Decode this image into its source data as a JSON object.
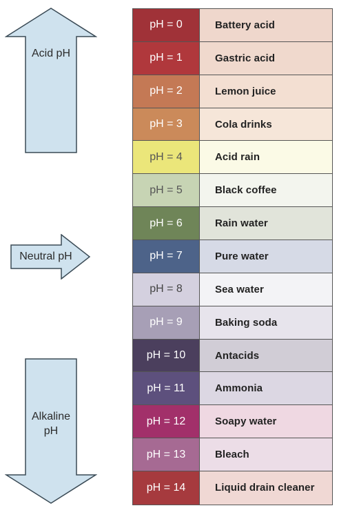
{
  "arrows": {
    "acid": {
      "label": "Acid pH",
      "direction": "up"
    },
    "neutral": {
      "label": "Neutral pH",
      "direction": "right"
    },
    "alkaline": {
      "label_line1": "Alkaline",
      "label_line2": "pH",
      "direction": "down"
    },
    "fill_color": "#cfe2ee",
    "stroke_color": "#3a4a55"
  },
  "rows": [
    {
      "ph": "pH = 0",
      "substance": "Battery acid",
      "ph_color": "#a03238",
      "desc_color": "#efd7cc",
      "ph_text_color": "#ffffff"
    },
    {
      "ph": "pH = 1",
      "substance": "Gastric acid",
      "ph_color": "#b0383c",
      "desc_color": "#f0d9cd",
      "ph_text_color": "#ffffff"
    },
    {
      "ph": "pH = 2",
      "substance": "Lemon juice",
      "ph_color": "#c47955",
      "desc_color": "#f3dfd2",
      "ph_text_color": "#ffffff"
    },
    {
      "ph": "pH = 3",
      "substance": "Cola drinks",
      "ph_color": "#cb8a5a",
      "desc_color": "#f6e6d9",
      "ph_text_color": "#ffffff"
    },
    {
      "ph": "pH = 4",
      "substance": "Acid rain",
      "ph_color": "#ebe67a",
      "desc_color": "#fbfae6",
      "ph_text_color": "#555555"
    },
    {
      "ph": "pH = 5",
      "substance": "Black coffee",
      "ph_color": "#c7d4b4",
      "desc_color": "#f3f5ee",
      "ph_text_color": "#555555"
    },
    {
      "ph": "pH = 6",
      "substance": "Rain water",
      "ph_color": "#6f8558",
      "desc_color": "#e1e4da",
      "ph_text_color": "#ffffff"
    },
    {
      "ph": "pH = 7",
      "substance": "Pure water",
      "ph_color": "#4d6389",
      "desc_color": "#d6dae6",
      "ph_text_color": "#ffffff"
    },
    {
      "ph": "pH = 8",
      "substance": "Sea water",
      "ph_color": "#d4d0df",
      "desc_color": "#f3f3f6",
      "ph_text_color": "#444444"
    },
    {
      "ph": "pH = 9",
      "substance": "Baking soda",
      "ph_color": "#a79fb6",
      "desc_color": "#e7e4ec",
      "ph_text_color": "#ffffff"
    },
    {
      "ph": "pH = 10",
      "substance": "Antacids",
      "ph_color": "#4b3f5d",
      "desc_color": "#d1cdd6",
      "ph_text_color": "#ffffff"
    },
    {
      "ph": "pH = 11",
      "substance": "Ammonia",
      "ph_color": "#5d507d",
      "desc_color": "#dcd7e3",
      "ph_text_color": "#ffffff"
    },
    {
      "ph": "pH = 12",
      "substance": "Soapy water",
      "ph_color": "#a2306a",
      "desc_color": "#efd8e2",
      "ph_text_color": "#ffffff"
    },
    {
      "ph": "pH = 13",
      "substance": "Bleach",
      "ph_color": "#a66a93",
      "desc_color": "#ecdde7",
      "ph_text_color": "#ffffff"
    },
    {
      "ph": "pH = 14",
      "substance": "Liquid drain cleaner",
      "ph_color": "#a63a3e",
      "desc_color": "#f0d8d4",
      "ph_text_color": "#ffffff"
    }
  ]
}
